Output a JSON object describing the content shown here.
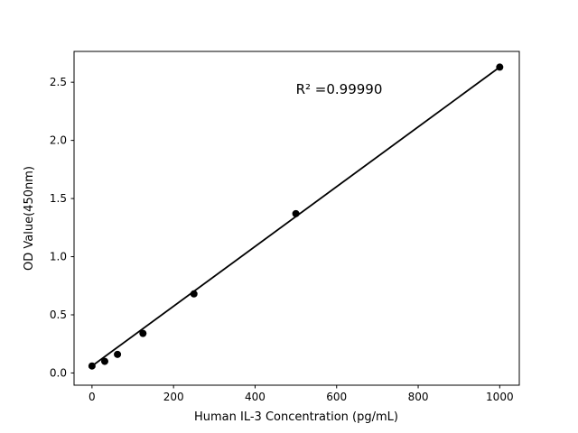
{
  "figure": {
    "background_color": "#ffffff",
    "foreground_color": "#000000"
  },
  "chart_data": {
    "type": "scatter",
    "title": "",
    "xlabel": "Human IL-3 Concentration (pg/mL)",
    "ylabel": "OD Value(450nm)",
    "x": [
      0,
      31.25,
      62.5,
      125,
      250,
      500,
      1000
    ],
    "y": [
      0.06,
      0.1,
      0.16,
      0.34,
      0.68,
      1.37,
      2.63
    ],
    "fit_line": {
      "x": [
        0,
        1000
      ],
      "y": [
        0.06,
        2.63
      ]
    },
    "annotation": {
      "text": "R² =0.99990",
      "r_squared": 0.9999,
      "x": 500,
      "y": 2.4
    },
    "x_ticks": [
      0,
      200,
      400,
      600,
      800,
      1000
    ],
    "y_ticks": [
      0.0,
      0.5,
      1.0,
      1.5,
      2.0,
      2.5
    ],
    "xlim": [
      -44,
      1048
    ],
    "ylim": [
      -0.105,
      2.765
    ],
    "grid": false,
    "legend": null,
    "marker_color": "#000000",
    "marker_size": 8,
    "line_color": "#000000"
  }
}
